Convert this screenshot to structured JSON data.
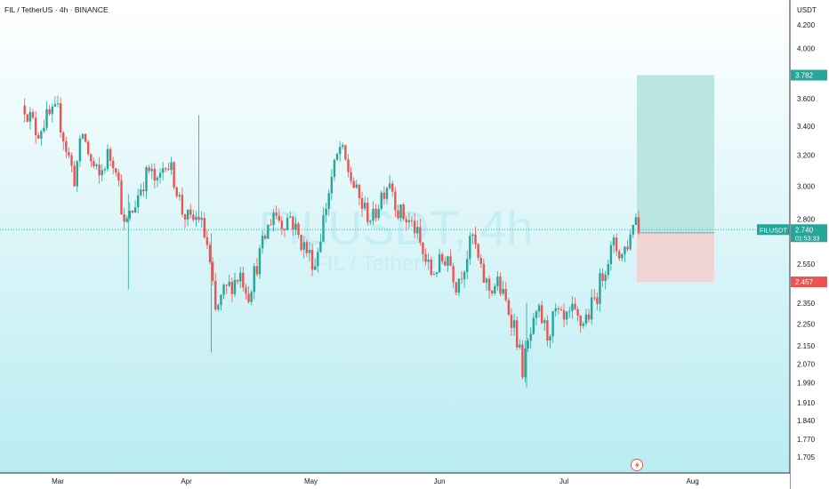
{
  "header": {
    "symbol_line": "FIL / TetherUS · 4h · BINANCE"
  },
  "watermark": {
    "line1": "FILUSDT, 4h",
    "line2": "FIL / TetherUS"
  },
  "chart_data": {
    "type": "candlestick",
    "symbol": "FILUSDT",
    "timeframe": "4h",
    "exchange": "BINANCE",
    "currency": "USDT",
    "y_axis_scale": "log",
    "y_ticks": [
      4.2,
      4.0,
      3.6,
      3.4,
      3.2,
      3.0,
      2.8,
      2.55,
      2.35,
      2.25,
      2.15,
      2.07,
      1.99,
      1.91,
      1.84,
      1.77,
      1.705
    ],
    "y_tick_labels": [
      "4.200",
      "4.000",
      "3.600",
      "3.400",
      "3.200",
      "3.000",
      "2.800",
      "2.550",
      "2.350",
      "2.250",
      "2.150",
      "2.070",
      "1.990",
      "1.910",
      "1.840",
      "1.770",
      "1.705"
    ],
    "x_labels": [
      "Mar",
      "Apr",
      "May",
      "Jun",
      "Jul",
      "Aug"
    ],
    "close_series_approx": [
      {
        "date": "Feb-22",
        "close": 3.55
      },
      {
        "date": "Feb-25",
        "close": 3.35
      },
      {
        "date": "Feb-27",
        "close": 3.45
      },
      {
        "date": "Mar-01",
        "close": 3.5
      },
      {
        "date": "Mar-03",
        "close": 3.25
      },
      {
        "date": "Mar-05",
        "close": 3.05
      },
      {
        "date": "Mar-07",
        "close": 3.35
      },
      {
        "date": "Mar-09",
        "close": 3.15
      },
      {
        "date": "Mar-11",
        "close": 3.05
      },
      {
        "date": "Mar-13",
        "close": 3.2
      },
      {
        "date": "Mar-15",
        "close": 3.15
      },
      {
        "date": "Mar-17",
        "close": 2.75
      },
      {
        "date": "Mar-19",
        "close": 2.85
      },
      {
        "date": "Mar-21",
        "close": 3.0
      },
      {
        "date": "Mar-23",
        "close": 3.1
      },
      {
        "date": "Mar-25",
        "close": 3.0
      },
      {
        "date": "Mar-27",
        "close": 3.18
      },
      {
        "date": "Mar-29",
        "close": 3.05
      },
      {
        "date": "Mar-31",
        "close": 2.85
      },
      {
        "date": "Apr-02",
        "close": 2.78
      },
      {
        "date": "Apr-04",
        "close": 2.82
      },
      {
        "date": "Apr-06",
        "close": 2.65
      },
      {
        "date": "Apr-08",
        "close": 2.3
      },
      {
        "date": "Apr-10",
        "close": 2.4
      },
      {
        "date": "Apr-12",
        "close": 2.45
      },
      {
        "date": "Apr-14",
        "close": 2.5
      },
      {
        "date": "Apr-16",
        "close": 2.4
      },
      {
        "date": "Apr-18",
        "close": 2.55
      },
      {
        "date": "Apr-20",
        "close": 2.7
      },
      {
        "date": "Apr-22",
        "close": 2.85
      },
      {
        "date": "Apr-24",
        "close": 2.78
      },
      {
        "date": "Apr-26",
        "close": 2.82
      },
      {
        "date": "Apr-28",
        "close": 2.7
      },
      {
        "date": "Apr-30",
        "close": 2.62
      },
      {
        "date": "May-02",
        "close": 2.55
      },
      {
        "date": "May-04",
        "close": 2.8
      },
      {
        "date": "May-06",
        "close": 3.05
      },
      {
        "date": "May-08",
        "close": 3.25
      },
      {
        "date": "May-10",
        "close": 3.1
      },
      {
        "date": "May-12",
        "close": 2.95
      },
      {
        "date": "May-14",
        "close": 2.85
      },
      {
        "date": "May-16",
        "close": 2.8
      },
      {
        "date": "May-18",
        "close": 2.95
      },
      {
        "date": "May-20",
        "close": 3.05
      },
      {
        "date": "May-22",
        "close": 2.85
      },
      {
        "date": "May-24",
        "close": 2.8
      },
      {
        "date": "May-26",
        "close": 2.75
      },
      {
        "date": "May-28",
        "close": 2.6
      },
      {
        "date": "May-30",
        "close": 2.5
      },
      {
        "date": "Jun-01",
        "close": 2.55
      },
      {
        "date": "Jun-03",
        "close": 2.6
      },
      {
        "date": "Jun-05",
        "close": 2.45
      },
      {
        "date": "Jun-07",
        "close": 2.55
      },
      {
        "date": "Jun-09",
        "close": 2.7
      },
      {
        "date": "Jun-11",
        "close": 2.5
      },
      {
        "date": "Jun-13",
        "close": 2.42
      },
      {
        "date": "Jun-15",
        "close": 2.45
      },
      {
        "date": "Jun-17",
        "close": 2.35
      },
      {
        "date": "Jun-19",
        "close": 2.25
      },
      {
        "date": "Jun-21",
        "close": 2.05
      },
      {
        "date": "Jun-23",
        "close": 2.2
      },
      {
        "date": "Jun-25",
        "close": 2.3
      },
      {
        "date": "Jun-27",
        "close": 2.2
      },
      {
        "date": "Jun-29",
        "close": 2.3
      },
      {
        "date": "Jul-01",
        "close": 2.25
      },
      {
        "date": "Jul-03",
        "close": 2.3
      },
      {
        "date": "Jul-05",
        "close": 2.25
      },
      {
        "date": "Jul-07",
        "close": 2.3
      },
      {
        "date": "Jul-09",
        "close": 2.4
      },
      {
        "date": "Jul-11",
        "close": 2.55
      },
      {
        "date": "Jul-13",
        "close": 2.65
      },
      {
        "date": "Jul-15",
        "close": 2.6
      },
      {
        "date": "Jul-17",
        "close": 2.7
      },
      {
        "date": "Jul-18",
        "close": 2.85
      },
      {
        "date": "Jul-19",
        "close": 2.74
      }
    ],
    "price_markers": {
      "target": {
        "value": 3.782,
        "label": "3.782",
        "color": "#26a69a"
      },
      "current": {
        "value": 2.74,
        "label": "2.740",
        "symbol": "FILUSDT",
        "countdown": "01:53:33",
        "color": "#26a69a"
      },
      "entry": {
        "value": 2.722,
        "label": "2.722",
        "color": "#26a69a"
      },
      "stop": {
        "value": 2.457,
        "label": "2.457",
        "color": "#ef5350"
      }
    },
    "long_position": {
      "entry": 2.722,
      "target": 3.782,
      "stop": 2.457,
      "start_date": "Jul-19",
      "end_date": "Aug-02"
    }
  },
  "colors": {
    "up": "#26a69a",
    "down": "#ef5350",
    "profit_zone": "#b9e6e3",
    "loss_zone": "#f1d4d6",
    "background_top": "#ffffff",
    "background_bottom": "#b9ecf2",
    "watermark": "#c6eef4"
  },
  "icons": {
    "flash": "lightning-icon"
  }
}
